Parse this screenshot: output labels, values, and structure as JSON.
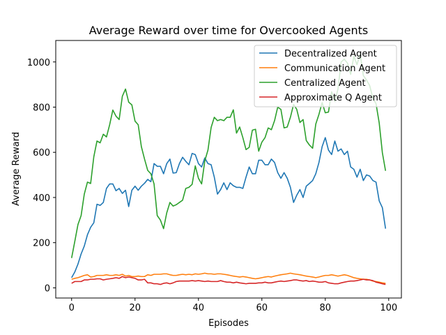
{
  "chart_data": {
    "type": "line",
    "title": "Average Reward over time for Overcooked Agents",
    "xlabel": "Episodes",
    "ylabel": "Average Reward",
    "xlim": [
      -5,
      104
    ],
    "ylim": [
      -45,
      1095
    ],
    "xticks": [
      0,
      20,
      40,
      60,
      80,
      100
    ],
    "yticks": [
      0,
      200,
      400,
      600,
      800,
      1000
    ],
    "grid": false,
    "legend_position": "top-right",
    "series": [
      {
        "name": "Decentralized Agent",
        "color": "#1f77b4",
        "values": [
          45,
          70,
          105,
          150,
          185,
          235,
          268,
          288,
          370,
          365,
          378,
          440,
          460,
          460,
          430,
          440,
          418,
          432,
          360,
          432,
          450,
          432,
          450,
          463,
          480,
          470,
          550,
          538,
          538,
          505,
          550,
          570,
          508,
          510,
          550,
          578,
          560,
          545,
          595,
          590,
          550,
          535,
          575,
          550,
          545,
          490,
          415,
          435,
          465,
          435,
          465,
          452,
          445,
          445,
          440,
          490,
          535,
          505,
          505,
          565,
          565,
          545,
          545,
          570,
          555,
          510,
          485,
          510,
          485,
          445,
          378,
          410,
          435,
          400,
          450,
          462,
          475,
          505,
          555,
          625,
          665,
          610,
          590,
          650,
          605,
          615,
          590,
          605,
          535,
          525,
          490,
          525,
          475,
          500,
          495,
          475,
          468,
          385,
          355,
          262
        ]
      },
      {
        "name": "Communication Agent",
        "color": "#ff7f0e",
        "values": [
          38,
          42,
          45,
          50,
          55,
          58,
          48,
          50,
          55,
          55,
          55,
          58,
          55,
          55,
          58,
          55,
          60,
          52,
          55,
          50,
          50,
          52,
          50,
          50,
          58,
          55,
          60,
          60,
          60,
          62,
          62,
          58,
          55,
          55,
          58,
          60,
          58,
          60,
          58,
          62,
          60,
          62,
          65,
          62,
          62,
          60,
          62,
          62,
          60,
          58,
          55,
          52,
          50,
          48,
          50,
          48,
          45,
          42,
          40,
          42,
          45,
          48,
          50,
          48,
          52,
          55,
          58,
          60,
          62,
          65,
          62,
          60,
          58,
          55,
          52,
          50,
          48,
          45,
          48,
          52,
          55,
          55,
          58,
          55,
          52,
          55,
          58,
          55,
          50,
          45,
          42,
          40,
          38,
          38,
          35,
          30,
          28,
          25,
          22,
          20
        ]
      },
      {
        "name": "Centralized Agent",
        "color": "#2ca02c",
        "values": [
          132,
          205,
          280,
          320,
          415,
          468,
          462,
          580,
          650,
          642,
          680,
          668,
          722,
          787,
          760,
          745,
          848,
          880,
          822,
          810,
          738,
          722,
          625,
          570,
          520,
          505,
          460,
          320,
          300,
          262,
          332,
          378,
          362,
          368,
          378,
          388,
          440,
          445,
          458,
          540,
          485,
          460,
          562,
          610,
          710,
          755,
          740,
          745,
          740,
          755,
          755,
          788,
          685,
          712,
          665,
          612,
          622,
          698,
          702,
          605,
          645,
          665,
          708,
          700,
          740,
          800,
          790,
          708,
          712,
          755,
          812,
          790,
          732,
          745,
          652,
          632,
          618,
          725,
          768,
          820,
          775,
          778,
          868,
          825,
          880,
          1000,
          1012,
          995,
          945,
          1025,
          988,
          1035,
          940,
          920,
          895,
          840,
          815,
          730,
          598,
          518
        ]
      },
      {
        "name": "Approximate Q Agent",
        "color": "#d62728",
        "values": [
          20,
          28,
          28,
          28,
          35,
          35,
          38,
          38,
          40,
          40,
          35,
          38,
          40,
          42,
          45,
          42,
          50,
          45,
          48,
          45,
          42,
          35,
          35,
          38,
          22,
          22,
          18,
          18,
          15,
          20,
          22,
          18,
          22,
          28,
          30,
          30,
          30,
          30,
          32,
          30,
          32,
          30,
          28,
          30,
          28,
          28,
          28,
          32,
          28,
          25,
          25,
          22,
          25,
          22,
          20,
          18,
          20,
          20,
          20,
          22,
          22,
          25,
          22,
          22,
          25,
          28,
          30,
          28,
          30,
          32,
          35,
          35,
          32,
          30,
          32,
          28,
          30,
          28,
          25,
          25,
          28,
          22,
          20,
          18,
          18,
          22,
          25,
          28,
          30,
          30,
          32,
          35,
          38,
          35,
          35,
          32,
          25,
          22,
          18,
          15
        ]
      }
    ]
  }
}
